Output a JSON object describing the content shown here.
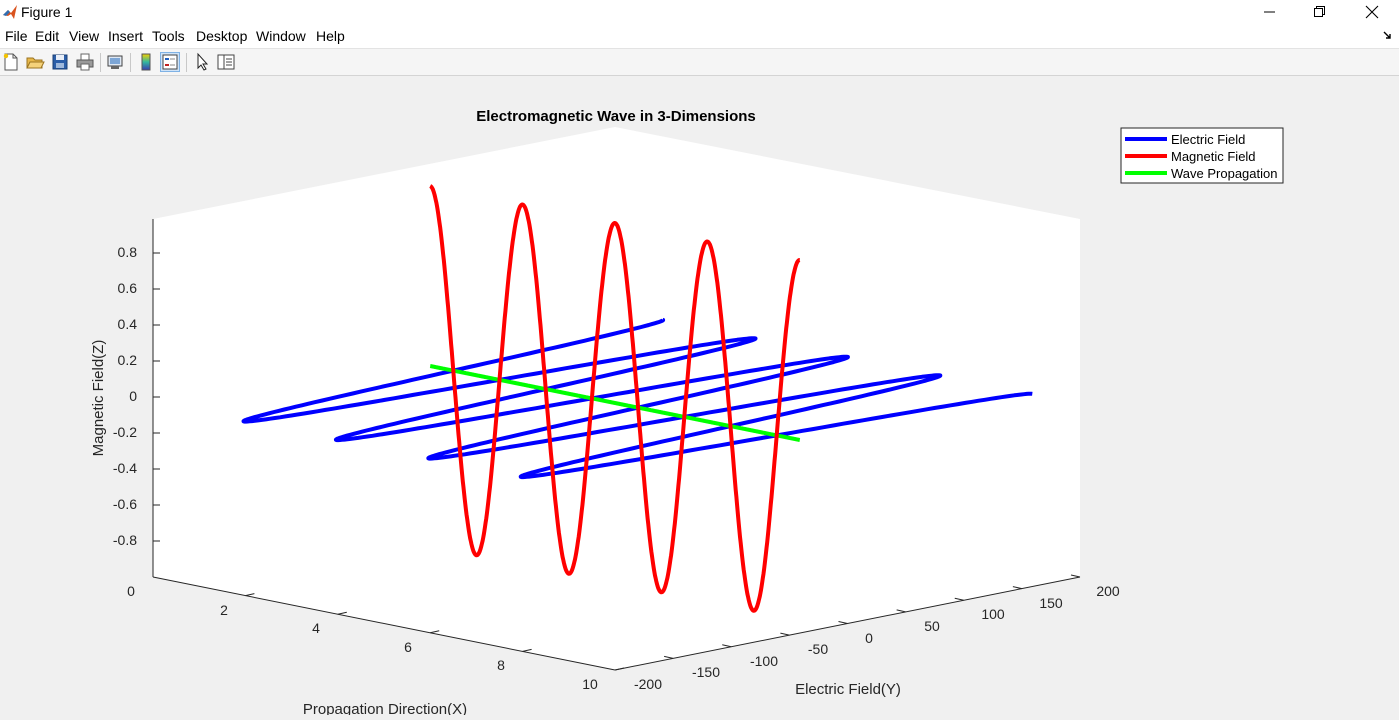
{
  "window": {
    "title": "Figure 1"
  },
  "menu": [
    "File",
    "Edit",
    "View",
    "Insert",
    "Tools",
    "Desktop",
    "Window",
    "Help"
  ],
  "toolbar": {
    "buttons": [
      "new-figure",
      "open-file",
      "save",
      "print",
      "link-plot",
      "insert-colorbar",
      "insert-legend",
      "edit-plot",
      "property-inspector"
    ],
    "active": "insert-legend"
  },
  "chart_data": {
    "type": "line",
    "title": "Electromagnetic Wave in 3-Dimensions",
    "xlabel": "Propagation Direction(X)",
    "ylabel": "Electric Field(Y)",
    "zlabel": "Magnetic Field(Z)",
    "xlim": [
      0,
      10
    ],
    "ylim": [
      -200,
      200
    ],
    "zlim": [
      -1,
      1
    ],
    "x_ticks": [
      "2",
      "4",
      "6",
      "8",
      "10"
    ],
    "x_zero_label": "0",
    "y_ticks": [
      "-200",
      "-150",
      "-100",
      "-50",
      "0",
      "50",
      "100",
      "150",
      "200"
    ],
    "z_ticks": [
      "0.8",
      "0.6",
      "0.4",
      "0.2",
      "0",
      "-0.2",
      "-0.4",
      "-0.6",
      "-0.8"
    ],
    "grid": false,
    "legend_position": "top-right",
    "series": [
      {
        "name": "Electric Field",
        "color": "#0000ff",
        "axis": "Y",
        "amplitude": 200,
        "cycles": 4,
        "x_range": [
          1,
          9
        ]
      },
      {
        "name": "Magnetic Field",
        "color": "#ff0000",
        "axis": "Z",
        "amplitude": 1,
        "cycles": 4,
        "x_range": [
          1,
          9
        ]
      },
      {
        "name": "Wave Propagation",
        "color": "#00ff00",
        "axis": "X",
        "x_range": [
          1,
          9
        ]
      }
    ]
  }
}
